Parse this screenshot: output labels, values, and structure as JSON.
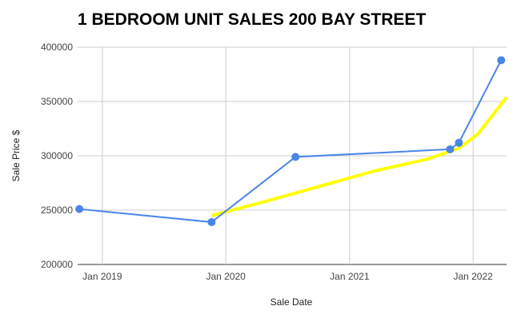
{
  "chart_data": {
    "type": "line",
    "title": "1 BEDROOM UNIT SALES 200 BAY STREET",
    "xlabel": "Sale Date",
    "ylabel": "Sale Price $",
    "ylim": [
      200000,
      400000
    ],
    "xlim": [
      "2018-10-20",
      "2022-04-10"
    ],
    "y_ticks": [
      200000,
      250000,
      300000,
      350000,
      400000
    ],
    "x_ticks": [
      {
        "date": "2019-01-01",
        "label": "Jan 2019"
      },
      {
        "date": "2020-01-01",
        "label": "Jan 2020"
      },
      {
        "date": "2021-01-01",
        "label": "Jan 2021"
      },
      {
        "date": "2022-01-01",
        "label": "Jan 2022"
      }
    ],
    "grid": true,
    "series": [
      {
        "color": "#4a86e8",
        "points": [
          {
            "x": "2018-10-25",
            "y": 251000
          },
          {
            "x": "2019-11-20",
            "y": 239000
          },
          {
            "x": "2020-07-25",
            "y": 299000
          },
          {
            "x": "2021-10-25",
            "y": 306000
          },
          {
            "x": "2021-11-20",
            "y": 312000
          },
          {
            "x": "2022-03-25",
            "y": 388000
          }
        ]
      },
      {
        "type": "trendline",
        "color": "#ffff00",
        "points": [
          {
            "x": "2019-11-20",
            "y": 245000
          },
          {
            "x": "2020-04-15",
            "y": 257000
          },
          {
            "x": "2020-10-05",
            "y": 272000
          },
          {
            "x": "2021-03-15",
            "y": 286000
          },
          {
            "x": "2021-08-20",
            "y": 297000
          },
          {
            "x": "2021-11-20",
            "y": 307000
          },
          {
            "x": "2022-01-15",
            "y": 320000
          },
          {
            "x": "2022-04-10",
            "y": 354000
          }
        ]
      }
    ]
  }
}
